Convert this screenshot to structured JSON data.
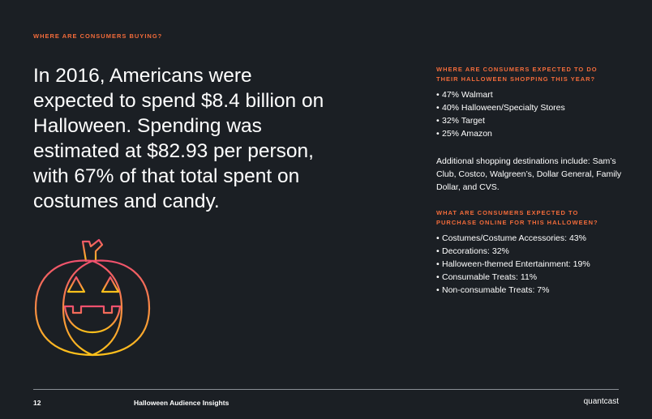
{
  "header": {
    "kicker": "WHERE ARE CONSUMERS BUYING?"
  },
  "headline": "In 2016, Americans were expected to spend $8.4 billion on Halloween. Spending was estimated at $82.93 per person, with 67% of that total spent on costumes and candy.",
  "section1": {
    "title_line1": "WHERE ARE CONSUMERS EXPECTED TO DO",
    "title_line2": "THEIR HALLOWEEN SHOPPING THIS YEAR?",
    "items": [
      "47% Walmart",
      "40% Halloween/Specialty Stores",
      "32% Target",
      "25% Amazon"
    ],
    "paragraph": "Additional shopping destinations include: Sam’s Club, Costco, Walgreen’s, Dollar General, Family Dollar, and CVS."
  },
  "section2": {
    "title_line1": "WHAT ARE CONSUMERS EXPECTED TO",
    "title_line2": "PURCHASE ONLINE FOR THIS HALLOWEEN?",
    "items": [
      "Costumes/Costume Accessories: 43%",
      "Decorations: 32%",
      "Halloween-themed Entertainment: 19%",
      "Consumable Treats: 11%",
      "Non-consumable Treats: 7%"
    ]
  },
  "footer": {
    "page_number": "12",
    "title": "Halloween Audience Insights",
    "brand": "quantcast"
  },
  "colors": {
    "accent": "#f26b3a",
    "background": "#1b1f24",
    "gradient_top": "#f0506e",
    "gradient_bottom": "#ffc21a"
  },
  "icons": {
    "illustration": "jack-o-lantern-icon"
  }
}
